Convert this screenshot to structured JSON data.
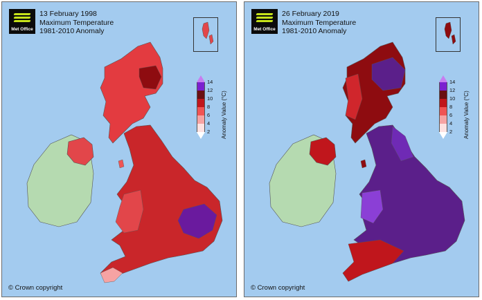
{
  "panels": [
    {
      "date": "13 February 1998",
      "title_line2": "Maximum Temperature",
      "title_line3": "1981-2010 Anomaly",
      "logo_text": "Met Office",
      "copyright": "© Crown copyright",
      "dominant_color": "#c9262a",
      "hot_color": "#8e0c10",
      "extreme_color": "#6a1a9e"
    },
    {
      "date": "26 February 2019",
      "title_line2": "Maximum Temperature",
      "title_line3": "1981-2010 Anomaly",
      "logo_text": "Met Office",
      "copyright": "© Crown copyright",
      "dominant_color": "#5b1f8a",
      "hot_color": "#8e0c10",
      "extreme_color": "#6f2ab5"
    }
  ],
  "legend": {
    "title": "Anomaly Value (°C)",
    "ticks": [
      "14",
      "12",
      "10",
      "8",
      "6",
      "4",
      "2"
    ],
    "colors": [
      "#c77df0",
      "#7b1fd0",
      "#6a0f13",
      "#c0161c",
      "#f05454",
      "#f6a3a3",
      "#fde1e1"
    ]
  },
  "map_colors": {
    "sea": "#a3cbef",
    "ireland_land": "#b5dab0"
  }
}
